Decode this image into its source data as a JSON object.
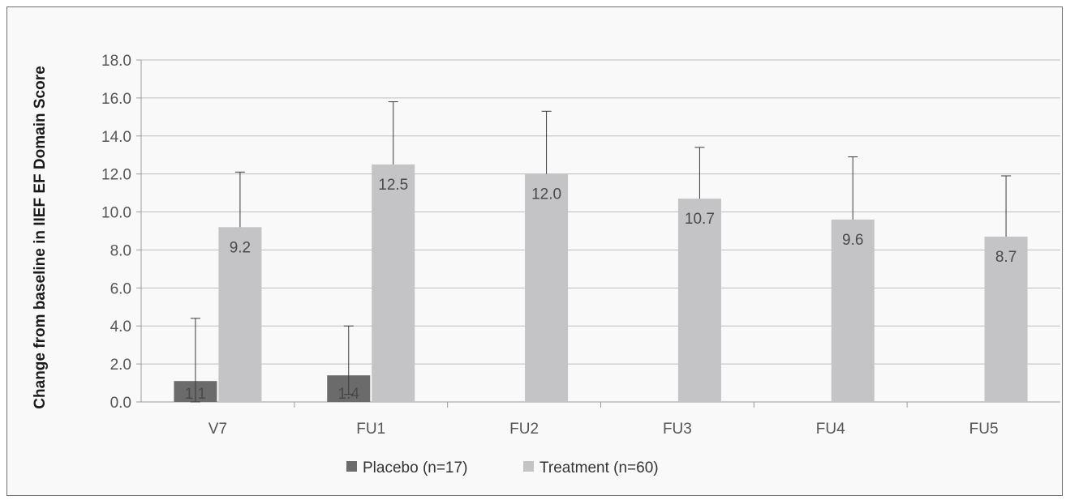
{
  "chart_data": {
    "type": "bar",
    "title": "",
    "xlabel": "",
    "ylabel": "Change from baseline in IIEF EF Domain Score",
    "ylim": [
      0,
      18
    ],
    "yticks": [
      "0.0",
      "2.0",
      "4.0",
      "6.0",
      "8.0",
      "10.0",
      "12.0",
      "14.0",
      "16.0",
      "18.0"
    ],
    "categories": [
      "V7",
      "FU1",
      "FU2",
      "FU3",
      "FU4",
      "FU5"
    ],
    "series": [
      {
        "name": "Placebo (n=17)",
        "color": "#6b6b6b",
        "values": [
          1.1,
          1.4,
          null,
          null,
          null,
          null
        ],
        "labels": [
          "1.1",
          "1.4",
          null,
          null,
          null,
          null
        ],
        "error_low": [
          0.0,
          0.4,
          null,
          null,
          null,
          null
        ],
        "error_high": [
          4.4,
          4.0,
          null,
          null,
          null,
          null
        ]
      },
      {
        "name": "Treatment (n=60)",
        "color": "#c4c4c6",
        "values": [
          9.2,
          12.5,
          12.0,
          10.7,
          9.6,
          8.7
        ],
        "labels": [
          "9.2",
          "12.5",
          "12.0",
          "10.7",
          "9.6",
          "8.7"
        ],
        "error_low": [
          null,
          null,
          null,
          null,
          null,
          null
        ],
        "error_high": [
          12.1,
          15.8,
          15.3,
          13.4,
          12.9,
          11.9
        ]
      }
    ],
    "grid": true,
    "legend_position": "bottom"
  }
}
